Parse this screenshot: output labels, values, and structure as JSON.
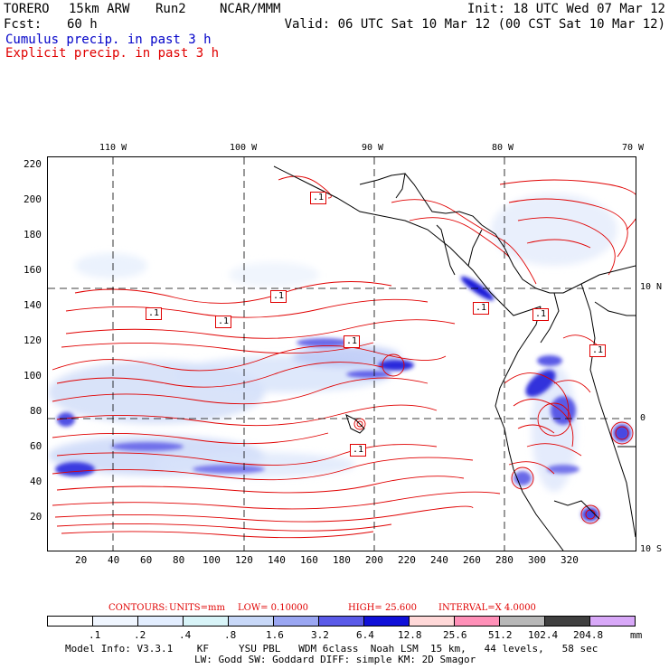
{
  "header": {
    "model": "TORERO",
    "resolution": "15km ARW",
    "run": "Run2",
    "org": "NCAR/MMM",
    "init": "Init: 18 UTC Wed 07 Mar 12",
    "fcst_label": "Fcst:",
    "fcst_hours": "60 h",
    "valid": "Valid: 06 UTC Sat 10 Mar 12 (00 CST Sat 10 Mar 12)",
    "legend_cumulus": "Cumulus precip. in past 3 h",
    "legend_explicit": "Explicit precip. in past 3 h",
    "legend_cumulus_color": "#0000c8",
    "legend_explicit_color": "#e00000"
  },
  "map": {
    "top_lon_labels": [
      "110 W",
      "100 W",
      "90 W",
      "80 W",
      "70 W"
    ],
    "right_lat_labels": [
      "10 N",
      "0",
      "10 S"
    ],
    "y_ticks": [
      "220",
      "200",
      "180",
      "160",
      "140",
      "120",
      "100",
      "80",
      "60",
      "40",
      "20"
    ],
    "x_ticks": [
      "20",
      "40",
      "60",
      "80",
      "100",
      "120",
      "140",
      "160",
      "180",
      "200",
      "220",
      "240",
      "260",
      "280",
      "300",
      "320"
    ],
    "contour_boxes": [
      ".1",
      ".1",
      ".1",
      ".1",
      ".1",
      ".1",
      ".1",
      ".1",
      ".1"
    ],
    "land_color": "#000000",
    "contour_color": "#e00000"
  },
  "contours_line": {
    "label": "CONTOURS:",
    "units": "UNITS=mm",
    "low": "LOW= 0.10000",
    "high": "HIGH= 25.600",
    "interval": "INTERVAL=X 4.0000"
  },
  "colorbar": {
    "labels": [
      ".1",
      ".2",
      ".4",
      ".8",
      "1.6",
      "3.2",
      "6.4",
      "12.8",
      "25.6",
      "51.2",
      "102.4",
      "204.8"
    ],
    "unit": "mm",
    "colors": [
      "#ffffff",
      "#f0f6ff",
      "#e3eeff",
      "#d8f4f8",
      "#c8d8f8",
      "#9aa6f2",
      "#5a5ae8",
      "#1010d8",
      "#ffd8d8",
      "#ff90b8",
      "#b8b8b8",
      "#404040",
      "#d8a8f8"
    ]
  },
  "footer": {
    "line1": "Model Info: V3.3.1    KF     YSU PBL   WDM 6class  Noah LSM  15 km,   44 levels,   58 sec",
    "line2": "LW: Godd SW: Goddard DIFF: simple KM: 2D Smagor"
  }
}
